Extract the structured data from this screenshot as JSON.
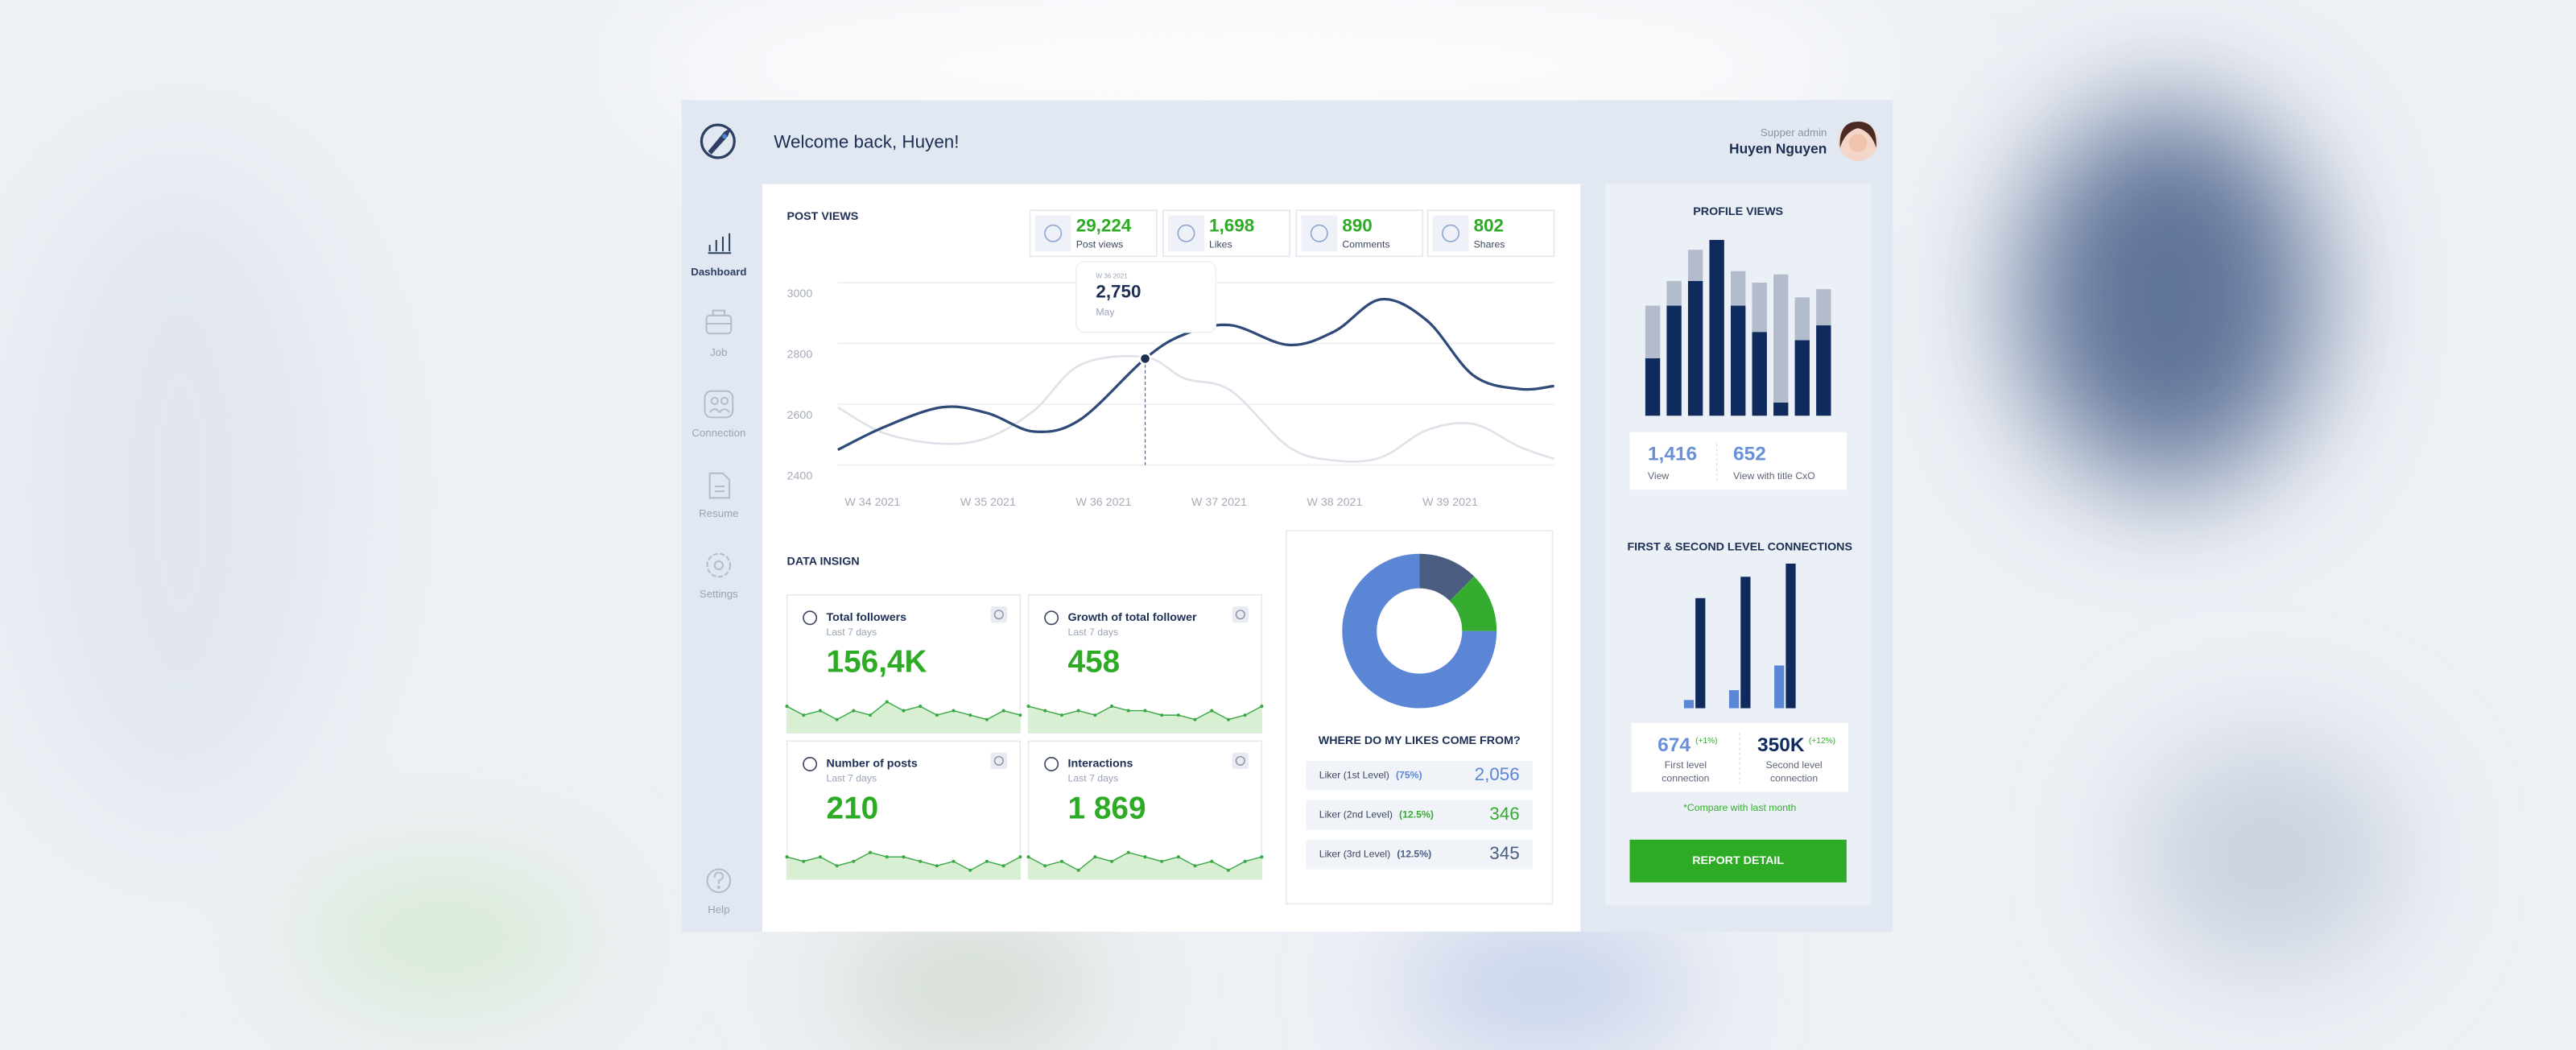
{
  "header": {
    "welcome": "Welcome back, Huyen!",
    "role": "Supper admin",
    "user": "Huyen Nguyen"
  },
  "sidebar": {
    "items": [
      "Dashboard",
      "Job",
      "Connection",
      "Resume",
      "Settings"
    ],
    "help": "Help"
  },
  "post_views": {
    "title": "POST VIEWS",
    "stats": [
      {
        "value": "29,224",
        "label": "Post views"
      },
      {
        "value": "1,698",
        "label": "Likes"
      },
      {
        "value": "890",
        "label": "Comments"
      },
      {
        "value": "802",
        "label": "Shares"
      }
    ]
  },
  "data_insight": {
    "title": "DATA INSIGN",
    "cards": [
      {
        "title": "Total followers",
        "period": "Last 7 days",
        "value": "156,4K"
      },
      {
        "title": "Growth of total follower",
        "period": "Last 7 days",
        "value": "458"
      },
      {
        "title": "Number of posts",
        "period": "Last 7 days",
        "value": "210"
      },
      {
        "title": "Interactions",
        "period": "Last 7 days",
        "value": "1 869"
      }
    ]
  },
  "likes": {
    "title": "WHERE DO MY LIKES COME FROM?",
    "counts": [
      "2,056",
      "346",
      "345"
    ]
  },
  "profile_views": {
    "title": "PROFILE VIEWS",
    "stats": [
      {
        "value": "1,416",
        "label": "View"
      },
      {
        "value": "652",
        "label": "View with title CxO"
      }
    ]
  },
  "connections": {
    "title": "FIRST & SECOND LEVEL CONNECTIONS",
    "stats": [
      {
        "value": "674",
        "change": "(+1%)",
        "label": [
          "First level",
          "connection"
        ]
      },
      {
        "value": "350K",
        "change": "(+12%)",
        "label": [
          "Second level",
          "connection"
        ]
      }
    ],
    "note": "*Compare with last month"
  },
  "button": "REPORT DETAIL",
  "chart_data": [
    {
      "type": "line",
      "x": [
        33.7,
        34.1,
        34.6,
        35.0,
        35.4,
        35.8,
        36.36,
        36.7,
        37.1,
        37.6,
        38.0,
        38.4,
        38.8,
        39.2,
        39.6,
        39.9
      ],
      "series": [
        {
          "color": "#2f4a78",
          "values": [
            2450,
            2525,
            2590,
            2570,
            2510,
            2550,
            2750,
            2830,
            2860,
            2795,
            2840,
            2945,
            2875,
            2695,
            2650,
            2660
          ]
        },
        {
          "color": "#dfe2e8",
          "values": [
            2590,
            2505,
            2470,
            2490,
            2580,
            2730,
            2755,
            2685,
            2645,
            2460,
            2415,
            2425,
            2515,
            2535,
            2460,
            2420
          ]
        }
      ],
      "xlim": [
        33.7,
        39.9
      ],
      "xticks": [
        {
          "value": 34,
          "label": "W 34 2021"
        },
        {
          "value": 35,
          "label": "W 35 2021"
        },
        {
          "value": 36,
          "label": "W 36 2021"
        },
        {
          "value": 37,
          "label": "W 37 2021"
        },
        {
          "value": 38,
          "label": "W 38 2021"
        },
        {
          "value": 39,
          "label": "W 39 2021"
        }
      ],
      "ylim": [
        2400,
        3000
      ],
      "yticks": [
        2400,
        2600,
        2800,
        3000
      ],
      "grid": true,
      "tooltip": {
        "label": "W 36 2021",
        "x": 36.36,
        "value": 2750,
        "value_label": "2,750",
        "sub": "May"
      }
    },
    {
      "type": "pie",
      "categories": [
        "Liker (1st Level)",
        "Liker (2nd Level)",
        "Liker (3rd Level)"
      ],
      "values": [
        75,
        12.5,
        12.5
      ],
      "value_labels": [
        "(75%)",
        "(12.5%)",
        "(12.5%)"
      ],
      "colors": [
        "#5b86d6",
        "#35ac2f",
        "#4a5d80"
      ]
    },
    {
      "type": "bar",
      "stacked": true,
      "categories": [
        null,
        null,
        null,
        null,
        null,
        null,
        null,
        null,
        null
      ],
      "series": [
        {
          "color": "#0f2a5c",
          "values": [
            35,
            67,
            82,
            107,
            67,
            51,
            8,
            46,
            55
          ]
        },
        {
          "color": "#b3bccb",
          "values": [
            32,
            15,
            19,
            0,
            21,
            30,
            78,
            26,
            22
          ]
        }
      ],
      "ylim": [
        0,
        110
      ]
    },
    {
      "type": "bar",
      "stacked": false,
      "categories": [
        null,
        null,
        null
      ],
      "series": [
        {
          "color": "#5b86d6",
          "values": [
            5,
            11,
            26
          ]
        },
        {
          "color": "#0f2a5c",
          "values": [
            67,
            80,
            88
          ]
        }
      ],
      "ylim": [
        0,
        90
      ]
    },
    {
      "type": "area",
      "color": "#3aa845",
      "ylim": [
        0,
        10
      ],
      "values": [
        6,
        4,
        5,
        3,
        5,
        4,
        7,
        5,
        6,
        4,
        5,
        4,
        3,
        5,
        4
      ]
    },
    {
      "type": "area",
      "color": "#3aa845",
      "ylim": [
        0,
        10
      ],
      "values": [
        6,
        5,
        4,
        5,
        4,
        6,
        5,
        5,
        4,
        4,
        3,
        5,
        3,
        4,
        6
      ]
    },
    {
      "type": "area",
      "color": "#3aa845",
      "ylim": [
        0,
        10
      ],
      "values": [
        5,
        4,
        5,
        3,
        4,
        6,
        5,
        5,
        4,
        3,
        4,
        2,
        4,
        3,
        5
      ]
    },
    {
      "type": "area",
      "color": "#3aa845",
      "ylim": [
        0,
        10
      ],
      "values": [
        5,
        3,
        4,
        2,
        5,
        4,
        6,
        5,
        4,
        5,
        3,
        4,
        2,
        4,
        5
      ]
    }
  ]
}
